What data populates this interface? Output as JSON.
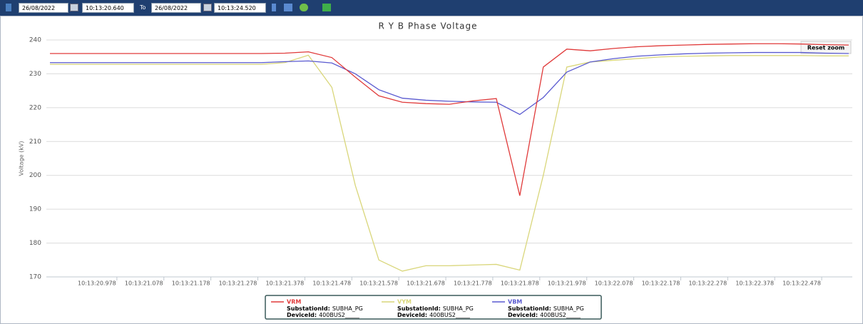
{
  "toolbar": {
    "from_date": "26/08/2022",
    "from_time": "10:13:20.640",
    "to_label": "To",
    "to_date": "26/08/2022",
    "to_time": "10:13:24.520"
  },
  "reset_zoom": "Reset zoom",
  "chart_data": {
    "type": "line",
    "title": "R Y B Phase Voltage",
    "y_label": "Voltage (kV)",
    "categories": [
      null,
      null,
      "10:13:20.978",
      null,
      "10:13:21.078",
      null,
      "10:13:21.178",
      null,
      "10:13:21.278",
      null,
      "10:13:21.378",
      null,
      "10:13:21.478",
      null,
      "10:13:21.578",
      null,
      "10:13:21.678",
      null,
      "10:13:21.778",
      null,
      "10:13:21.878",
      null,
      "10:13:21.978",
      null,
      "10:13:22.078",
      null,
      "10:13:22.178",
      null,
      "10:13:22.278",
      null,
      "10:13:22.378",
      null,
      "10:13:22.478",
      null,
      null
    ],
    "ylim": [
      170,
      240
    ],
    "yticks": [
      170,
      180,
      190,
      200,
      210,
      220,
      230,
      240
    ],
    "grid": true,
    "series": [
      {
        "name": "VRM",
        "color": "#e03a3a",
        "details": [
          {
            "label": "SubstationId:",
            "value": "SUBHA_PG"
          },
          {
            "label": "DeviceId:",
            "value": "400BUS2_____"
          }
        ],
        "values": [
          236,
          236,
          236,
          236,
          236,
          236,
          236,
          236,
          236,
          236,
          236.1,
          236.5,
          234.8,
          229,
          223.5,
          221.6,
          221.2,
          221,
          222,
          222.7,
          194,
          232,
          237.3,
          236.8,
          237.5,
          238,
          238.3,
          238.5,
          238.7,
          238.8,
          238.9,
          238.9,
          238.8,
          238.6,
          238.5
        ]
      },
      {
        "name": "VYM",
        "color": "#d9d67a",
        "details": [
          {
            "label": "SubstationId:",
            "value": "SUBHA_PG"
          },
          {
            "label": "DeviceId:",
            "value": "400BUS2_____"
          }
        ],
        "values": [
          232.8,
          232.8,
          232.8,
          232.8,
          232.8,
          232.8,
          232.8,
          232.8,
          232.8,
          232.8,
          233.3,
          235.5,
          226,
          197,
          175,
          171.7,
          173.3,
          173.3,
          173.5,
          173.7,
          172,
          200,
          232,
          233.5,
          234,
          234.5,
          235,
          235.2,
          235.3,
          235.4,
          235.4,
          235.4,
          235.4,
          235.3,
          235.3
        ]
      },
      {
        "name": "VBM",
        "color": "#5a5ad0",
        "details": [
          {
            "label": "SubstationId:",
            "value": "SUBHA_PG"
          },
          {
            "label": "DeviceId:",
            "value": "400BUS2_____"
          }
        ],
        "values": [
          233.3,
          233.3,
          233.3,
          233.3,
          233.3,
          233.3,
          233.3,
          233.3,
          233.3,
          233.3,
          233.6,
          233.8,
          233.2,
          230,
          225.3,
          222.8,
          222.2,
          221.9,
          221.7,
          221.6,
          218,
          223,
          230.5,
          233.5,
          234.5,
          235.2,
          235.6,
          235.9,
          236.1,
          236.2,
          236.3,
          236.3,
          236.3,
          236.1,
          236
        ]
      }
    ]
  }
}
